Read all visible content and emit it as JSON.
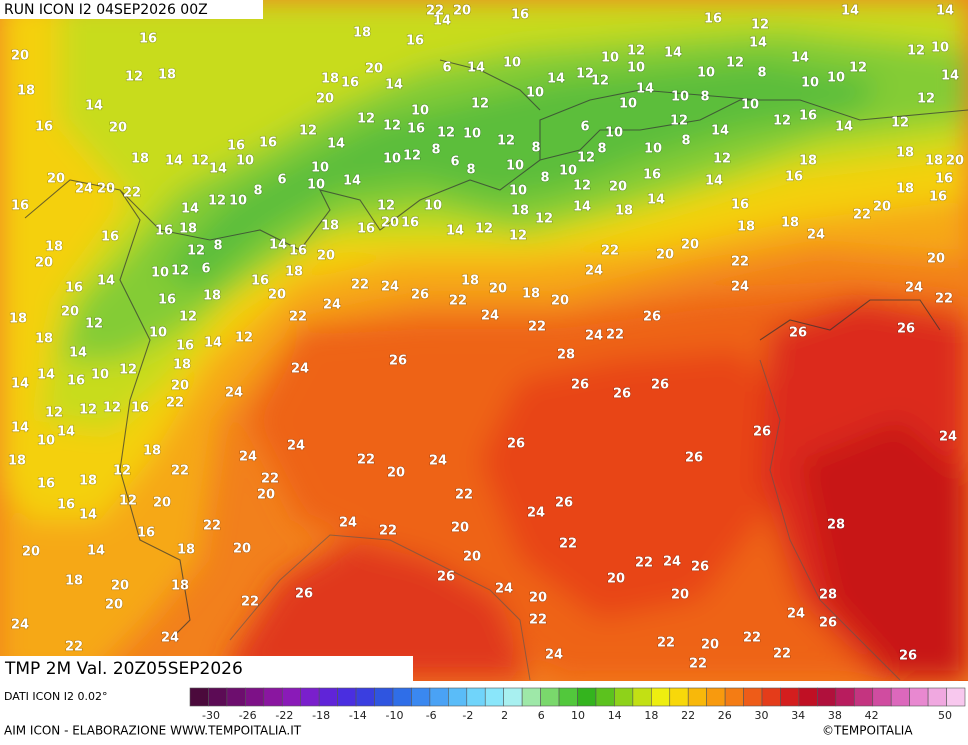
{
  "header": {
    "title": "RUN ICON I2 04SEP2026 00Z"
  },
  "map": {
    "labels": [
      20,
      18,
      16,
      20,
      14,
      18,
      12,
      16,
      16,
      16,
      18,
      16,
      14,
      22,
      20,
      16,
      20,
      18,
      16,
      20,
      14,
      6,
      14,
      10,
      14,
      12,
      10,
      12,
      10,
      14,
      10,
      12,
      8,
      14,
      10,
      10,
      12,
      16,
      12,
      14,
      14,
      14,
      10,
      12,
      14,
      12,
      12,
      14,
      16,
      12,
      10,
      8,
      10,
      14,
      10,
      12,
      10,
      12,
      10,
      12,
      12,
      16,
      12,
      10,
      12,
      8,
      6,
      10,
      12,
      8,
      14,
      10,
      8,
      12,
      10,
      8,
      10,
      8,
      6,
      8,
      12,
      10,
      12,
      14,
      16,
      16,
      10,
      14,
      12,
      14,
      18,
      10,
      10,
      14,
      6,
      8,
      10,
      12,
      14,
      18,
      16,
      8,
      6,
      12,
      10,
      12,
      18,
      16,
      20,
      16,
      12,
      10,
      14,
      12,
      18,
      12,
      12,
      10,
      12,
      14,
      20,
      16,
      18,
      14,
      12,
      14,
      16,
      18,
      18,
      18,
      16,
      22,
      20,
      18,
      18,
      18,
      20,
      16,
      16,
      24,
      20,
      24,
      22,
      26,
      24,
      26,
      22,
      24,
      20,
      20,
      26,
      22,
      24,
      20,
      24,
      22,
      28,
      22,
      18,
      20,
      18,
      22,
      24,
      26,
      24,
      22,
      24,
      20,
      16,
      18,
      14,
      16,
      20,
      22,
      12,
      14,
      18,
      12,
      16,
      16,
      10,
      18,
      20,
      22,
      24,
      24,
      26,
      26,
      26,
      26,
      26,
      26,
      26,
      26,
      24,
      22,
      20,
      24,
      24,
      22,
      20,
      22,
      20,
      18,
      18,
      20,
      20,
      18,
      24,
      22,
      20,
      14,
      16,
      20,
      12,
      22,
      18,
      12,
      18,
      16,
      14,
      16,
      18,
      14,
      14,
      10,
      12,
      12,
      12,
      16,
      14,
      14,
      16,
      10,
      12,
      14,
      18,
      18,
      12,
      20,
      16,
      14,
      20,
      18,
      16,
      16,
      20,
      24,
      20,
      22,
      24,
      22,
      20,
      22,
      24,
      20,
      26,
      24,
      20,
      22,
      22,
      20,
      22,
      24,
      26,
      20,
      24,
      28,
      26,
      28,
      24,
      22,
      22,
      20,
      22,
      22,
      26,
      26,
      22,
      24
    ]
  },
  "footer": {
    "field": "TMP 2M Val. 20Z05SEP2026",
    "source": "DATI ICON I2 0.02°",
    "credit": "AIM ICON - ELABORAZIONE WWW.TEMPOITALIA.IT",
    "copyright": "©TEMPOITALIA"
  },
  "colorbar": {
    "colors": [
      "#4b0a3c",
      "#5c0b55",
      "#6d0e6e",
      "#7d1187",
      "#8a16a0",
      "#8a1ab8",
      "#7a1fcc",
      "#6024d8",
      "#4a2ee0",
      "#3a3ee0",
      "#2f55e0",
      "#2f6ee8",
      "#3a88f0",
      "#4aa2f5",
      "#5abcf8",
      "#70d4fa",
      "#8ae6fa",
      "#a8f0f0",
      "#9ee8a8",
      "#7ad86c",
      "#52c83c",
      "#34b41e",
      "#5cc21e",
      "#8ed21a",
      "#c2e014",
      "#eeee10",
      "#f8d80a",
      "#f8b80a",
      "#f89a0e",
      "#f47c14",
      "#ee5c18",
      "#e43c1a",
      "#d41e1e",
      "#c01024",
      "#b0103c",
      "#b81c5e",
      "#c43480",
      "#d04ca0",
      "#dc68bc",
      "#e888d0",
      "#f0a8e0",
      "#f8c8ee"
    ],
    "ticks": [
      -30,
      -26,
      -22,
      -18,
      -14,
      -10,
      -6,
      -2,
      2,
      6,
      10,
      14,
      18,
      22,
      26,
      30,
      34,
      38,
      42,
      50
    ]
  }
}
